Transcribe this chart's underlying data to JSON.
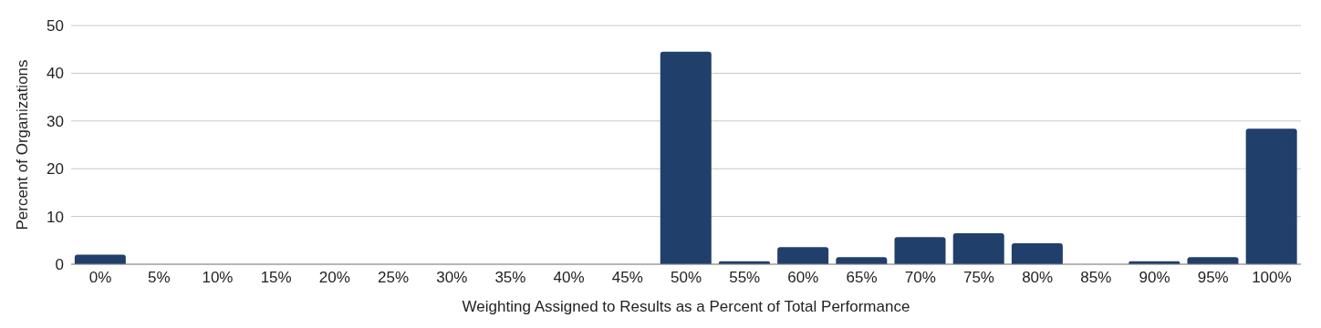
{
  "chart_data": {
    "type": "bar",
    "xlabel": "Weighting Assigned to Results as a Percent of Total Performance",
    "ylabel": "Percent of Organizations",
    "categories": [
      "0%",
      "5%",
      "10%",
      "15%",
      "20%",
      "25%",
      "30%",
      "35%",
      "40%",
      "45%",
      "50%",
      "55%",
      "60%",
      "65%",
      "70%",
      "75%",
      "80%",
      "85%",
      "90%",
      "95%",
      "100%"
    ],
    "values": [
      2,
      0,
      0,
      0,
      0,
      0,
      0,
      0,
      0,
      0,
      44.5,
      0.6,
      3.6,
      1.5,
      5.7,
      6.5,
      4.4,
      0,
      0.6,
      1.5,
      28.4
    ],
    "color": "#213f6b",
    "ylim": [
      0,
      50
    ],
    "yticks": [
      0,
      10,
      20,
      30,
      40,
      50
    ],
    "grid": "y"
  }
}
